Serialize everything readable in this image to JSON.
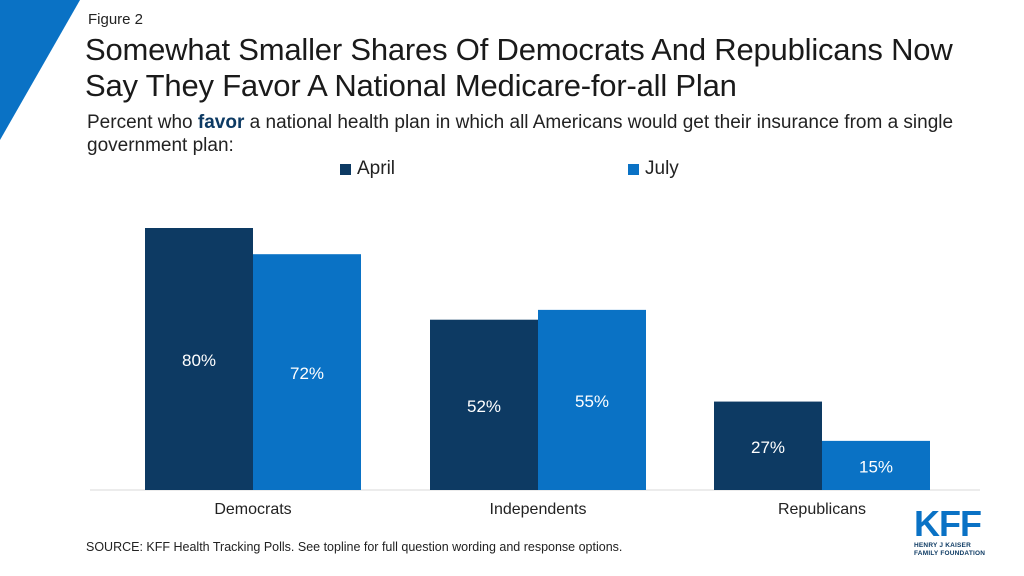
{
  "header": {
    "figure_label": "Figure 2",
    "title": "Somewhat Smaller Shares Of Democrats And Republicans Now Say They Favor A National Medicare-for-all Plan",
    "subtitle_before": "Percent who ",
    "subtitle_emphasis": "favor",
    "subtitle_after": " a national health plan in which all Americans would get their insurance from a single government plan:"
  },
  "footer": {
    "source": "SOURCE: KFF Health Tracking Polls. See topline for full question wording and response options."
  },
  "logo": {
    "mark": "KFF",
    "line1": "HENRY J KAISER",
    "line2": "FAMILY FOUNDATION"
  },
  "colors": {
    "accent": "#0a72c5",
    "april": "#0d3a63",
    "july": "#0a72c5"
  },
  "chart_data": {
    "type": "bar",
    "title": "Somewhat Smaller Shares Of Democrats And Republicans Now Say They Favor A National Medicare-for-all Plan",
    "categories": [
      "Democrats",
      "Independents",
      "Republicans"
    ],
    "series": [
      {
        "name": "April",
        "values": [
          80,
          52,
          27
        ],
        "labels": [
          "80%",
          "52%",
          "27%"
        ],
        "color": "#0d3a63"
      },
      {
        "name": "July",
        "values": [
          72,
          55,
          15
        ],
        "labels": [
          "72%",
          "55%",
          "15%"
        ],
        "color": "#0a72c5"
      }
    ],
    "ylim": [
      0,
      100
    ],
    "grid": false,
    "legend": "top-center",
    "xlabel": "",
    "ylabel": ""
  }
}
